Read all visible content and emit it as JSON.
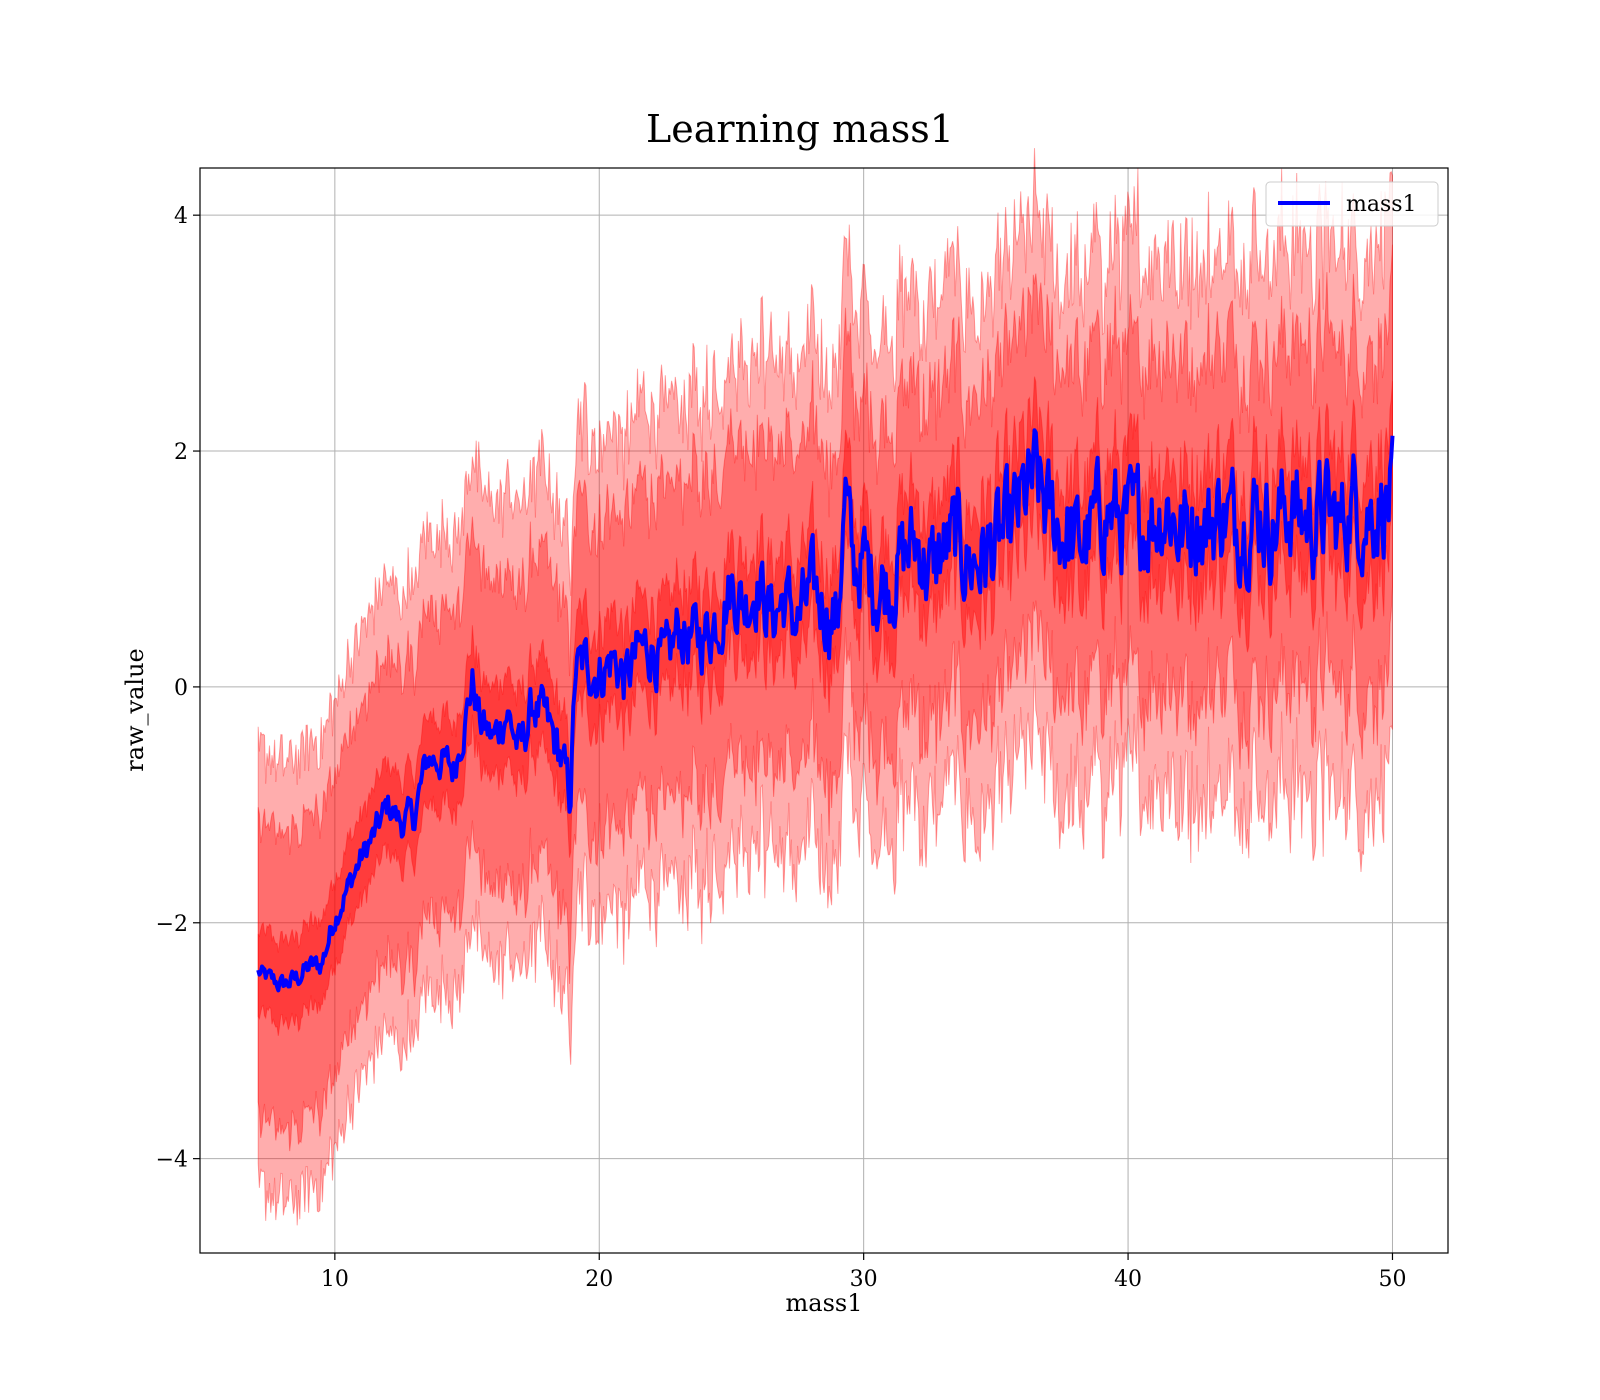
{
  "chart_data": {
    "type": "line",
    "title": "Learning mass1",
    "xlabel": "mass1",
    "ylabel": "raw_value",
    "xlim": [
      4.9,
      52.1
    ],
    "ylim": [
      -4.8,
      4.4
    ],
    "xticks": [
      10,
      20,
      30,
      40,
      50
    ],
    "yticks": [
      -4,
      -2,
      0,
      2,
      4
    ],
    "xtick_labels": [
      "10",
      "20",
      "30",
      "40",
      "50"
    ],
    "ytick_labels": [
      "−4",
      "−2",
      "0",
      "2",
      "4"
    ],
    "grid": true,
    "legend": {
      "position": "top-right",
      "entries": [
        "mass1"
      ]
    },
    "colors": {
      "line": "#0000ff",
      "band": "#ff0000"
    },
    "bands": [
      {
        "half_width_start": 1.85,
        "half_width_end": 2.35,
        "opacity": 0.32
      },
      {
        "half_width_start": 1.25,
        "half_width_end": 1.45,
        "opacity": 0.36
      },
      {
        "half_width_start": 0.35,
        "half_width_end": 0.5,
        "opacity": 0.45
      }
    ],
    "series": [
      {
        "name": "mass1",
        "x": [
          7.1,
          7.5,
          8.0,
          8.5,
          9.0,
          9.5,
          10.0,
          10.5,
          11.0,
          11.5,
          12.0,
          12.5,
          13.0,
          13.5,
          14.0,
          14.5,
          15.0,
          15.2,
          15.5,
          16.0,
          16.5,
          17.0,
          17.5,
          18.0,
          18.5,
          18.9,
          19.1,
          19.5,
          20.0,
          20.5,
          21.0,
          21.5,
          22.0,
          22.5,
          23.0,
          23.5,
          24.0,
          24.5,
          25.0,
          25.5,
          26.0,
          26.5,
          27.0,
          27.5,
          28.0,
          28.5,
          29.0,
          29.3,
          29.6,
          30.0,
          30.5,
          31.0,
          31.5,
          32.0,
          32.5,
          33.0,
          33.5,
          34.0,
          34.5,
          35.0,
          35.5,
          36.0,
          36.5,
          37.0,
          37.5,
          38.0,
          38.5,
          39.0,
          39.5,
          40.0,
          40.5,
          41.0,
          41.5,
          42.0,
          42.5,
          43.0,
          43.5,
          44.0,
          44.5,
          45.0,
          45.5,
          46.0,
          46.5,
          47.0,
          47.5,
          48.0,
          48.5,
          49.0,
          49.5,
          50.0
        ],
        "y": [
          -2.42,
          -2.47,
          -2.53,
          -2.48,
          -2.38,
          -2.35,
          -1.95,
          -1.7,
          -1.45,
          -1.25,
          -1.0,
          -1.15,
          -1.1,
          -0.6,
          -0.62,
          -0.7,
          -0.2,
          0.05,
          -0.3,
          -0.45,
          -0.2,
          -0.55,
          -0.15,
          -0.3,
          -0.55,
          -0.95,
          0.15,
          0.2,
          0.1,
          0.25,
          0.05,
          0.3,
          0.35,
          0.15,
          0.5,
          0.4,
          0.45,
          0.6,
          0.85,
          0.7,
          0.9,
          0.6,
          0.75,
          0.55,
          0.8,
          0.7,
          0.55,
          1.65,
          1.0,
          1.05,
          0.85,
          0.9,
          1.1,
          1.25,
          0.95,
          1.15,
          1.25,
          1.05,
          1.1,
          1.2,
          1.3,
          1.55,
          1.75,
          1.45,
          1.35,
          1.2,
          1.25,
          1.5,
          1.45,
          1.35,
          1.4,
          1.45,
          1.55,
          1.3,
          1.45,
          1.35,
          1.5,
          1.4,
          1.45,
          1.5,
          1.35,
          1.55,
          1.45,
          1.4,
          1.5,
          1.35,
          1.6,
          1.45,
          1.55,
          1.6
        ]
      }
    ]
  }
}
